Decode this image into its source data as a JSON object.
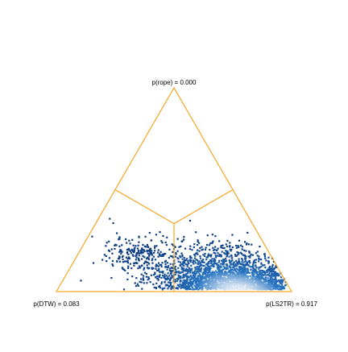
{
  "chart_data": {
    "type": "scatter",
    "subtype": "ternary-posterior-density",
    "vertices": [
      {
        "name": "rope",
        "label": "p(rope) = 0.000",
        "position": "top"
      },
      {
        "name": "DTW",
        "label": "p(DTW) = 0.083",
        "position": "bottom-left"
      },
      {
        "name": "LS2TR",
        "label": "p(LS2TR) = 0.917",
        "position": "bottom-right"
      }
    ],
    "probabilities": {
      "rope": 0.0,
      "DTW": 0.083,
      "LS2TR": 0.917
    },
    "region_boundaries": "decision regions separated at the centroid",
    "density": {
      "mass_center": {
        "rope": 0.07,
        "DTW": 0.22,
        "LS2TR": 0.71
      },
      "spread": {
        "along_base": 0.17,
        "toward_rope": 0.09
      },
      "secondary_cluster": {
        "rope": 0.18,
        "DTW": 0.55,
        "LS2TR": 0.27,
        "weight": 0.08
      }
    },
    "colors": {
      "outline": "#f5a623",
      "density_low": "#0b3a7e",
      "density_mid": "#2a77c4",
      "density_high": "#e6eef6"
    },
    "grid": false,
    "legend": "none"
  }
}
